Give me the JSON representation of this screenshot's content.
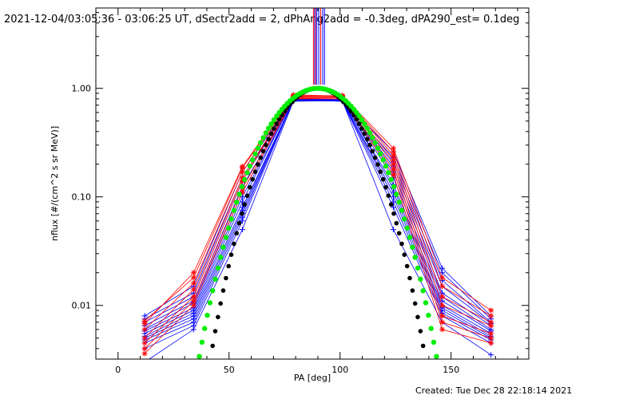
{
  "chart_data": {
    "type": "line",
    "title": "2021-12-04/03:05:36 - 03:06:25 UT, dSectr2add = 2, dPhAng2add = -0.3deg, dPA290_est=  0.1deg",
    "xlabel": "PA [deg]",
    "ylabel": "nflux [#/(cm^2 s sr MeV)]",
    "x_scale": "linear",
    "y_scale": "log",
    "xlim": [
      -10,
      185
    ],
    "ylim": [
      0.0032,
      5.5
    ],
    "x_ticks": [
      0,
      50,
      100,
      150
    ],
    "x_tick_labels": [
      "0",
      "50",
      "100",
      "150"
    ],
    "y_ticks": [
      0.01,
      0.1,
      1.0
    ],
    "y_tick_labels": [
      "0.01",
      "0.10",
      "1.00"
    ],
    "grid": false,
    "footer": "Created: Tue Dec 28 22:18:14 2021",
    "pa_bins": [
      12,
      34,
      56,
      79,
      101,
      124,
      146,
      168
    ],
    "colors": {
      "red_series": "#ff0000",
      "blue_series": "#0000ff",
      "black_fit": "#000000",
      "green_fit": "#00ee00",
      "axes": "#000000"
    },
    "red_series": [
      [
        0.0072,
        0.018,
        0.185,
        0.85,
        0.86,
        0.28,
        0.018,
        0.009
      ],
      [
        0.0068,
        0.02,
        0.19,
        0.87,
        0.85,
        0.26,
        0.015,
        0.008
      ],
      [
        0.006,
        0.016,
        0.17,
        0.84,
        0.84,
        0.24,
        0.012,
        0.007
      ],
      [
        0.005,
        0.014,
        0.15,
        0.82,
        0.82,
        0.22,
        0.01,
        0.0065
      ],
      [
        0.0045,
        0.012,
        0.14,
        0.83,
        0.83,
        0.2,
        0.008,
        0.0055
      ],
      [
        0.004,
        0.011,
        0.12,
        0.81,
        0.8,
        0.18,
        0.007,
        0.005
      ],
      [
        0.0036,
        0.01,
        0.11,
        0.8,
        0.8,
        0.16,
        0.006,
        0.0045
      ]
    ],
    "blue_series": [
      [
        0.008,
        0.015,
        0.17,
        0.8,
        0.78,
        0.26,
        0.022,
        0.008
      ],
      [
        0.0075,
        0.013,
        0.15,
        0.78,
        0.76,
        0.23,
        0.02,
        0.0075
      ],
      [
        0.007,
        0.012,
        0.14,
        0.8,
        0.79,
        0.21,
        0.017,
        0.007
      ],
      [
        0.0065,
        0.011,
        0.125,
        0.77,
        0.77,
        0.19,
        0.015,
        0.0068
      ],
      [
        0.006,
        0.0105,
        0.11,
        0.79,
        0.8,
        0.17,
        0.013,
        0.0065
      ],
      [
        0.0058,
        0.0095,
        0.1,
        0.78,
        0.78,
        0.15,
        0.012,
        0.006
      ],
      [
        0.0055,
        0.009,
        0.09,
        0.8,
        0.77,
        0.13,
        0.011,
        0.0058
      ],
      [
        0.0052,
        0.0085,
        0.08,
        0.76,
        0.79,
        0.12,
        0.01,
        0.0055
      ],
      [
        0.005,
        0.008,
        0.075,
        0.78,
        0.76,
        0.11,
        0.0095,
        0.0052
      ],
      [
        0.0048,
        0.0075,
        0.07,
        0.77,
        0.78,
        0.1,
        0.009,
        0.005
      ],
      [
        0.0045,
        0.007,
        0.065,
        0.79,
        0.77,
        0.09,
        0.0085,
        0.0048
      ],
      [
        0.004,
        0.0065,
        0.06,
        0.78,
        0.76,
        0.08,
        0.008,
        0.0045
      ],
      [
        0.003,
        0.006,
        0.05,
        0.76,
        0.77,
        0.05,
        0.007,
        0.0035
      ]
    ],
    "black_fit_exponent": 14,
    "green_fit_exponent": 11,
    "fit_x_step": 1.2,
    "red_vertical_bars_x": [
      88.0,
      88.9,
      91.3
    ],
    "blue_vertical_bars_x": [
      88.6,
      89.5,
      90.4,
      92.2,
      93.0
    ]
  }
}
